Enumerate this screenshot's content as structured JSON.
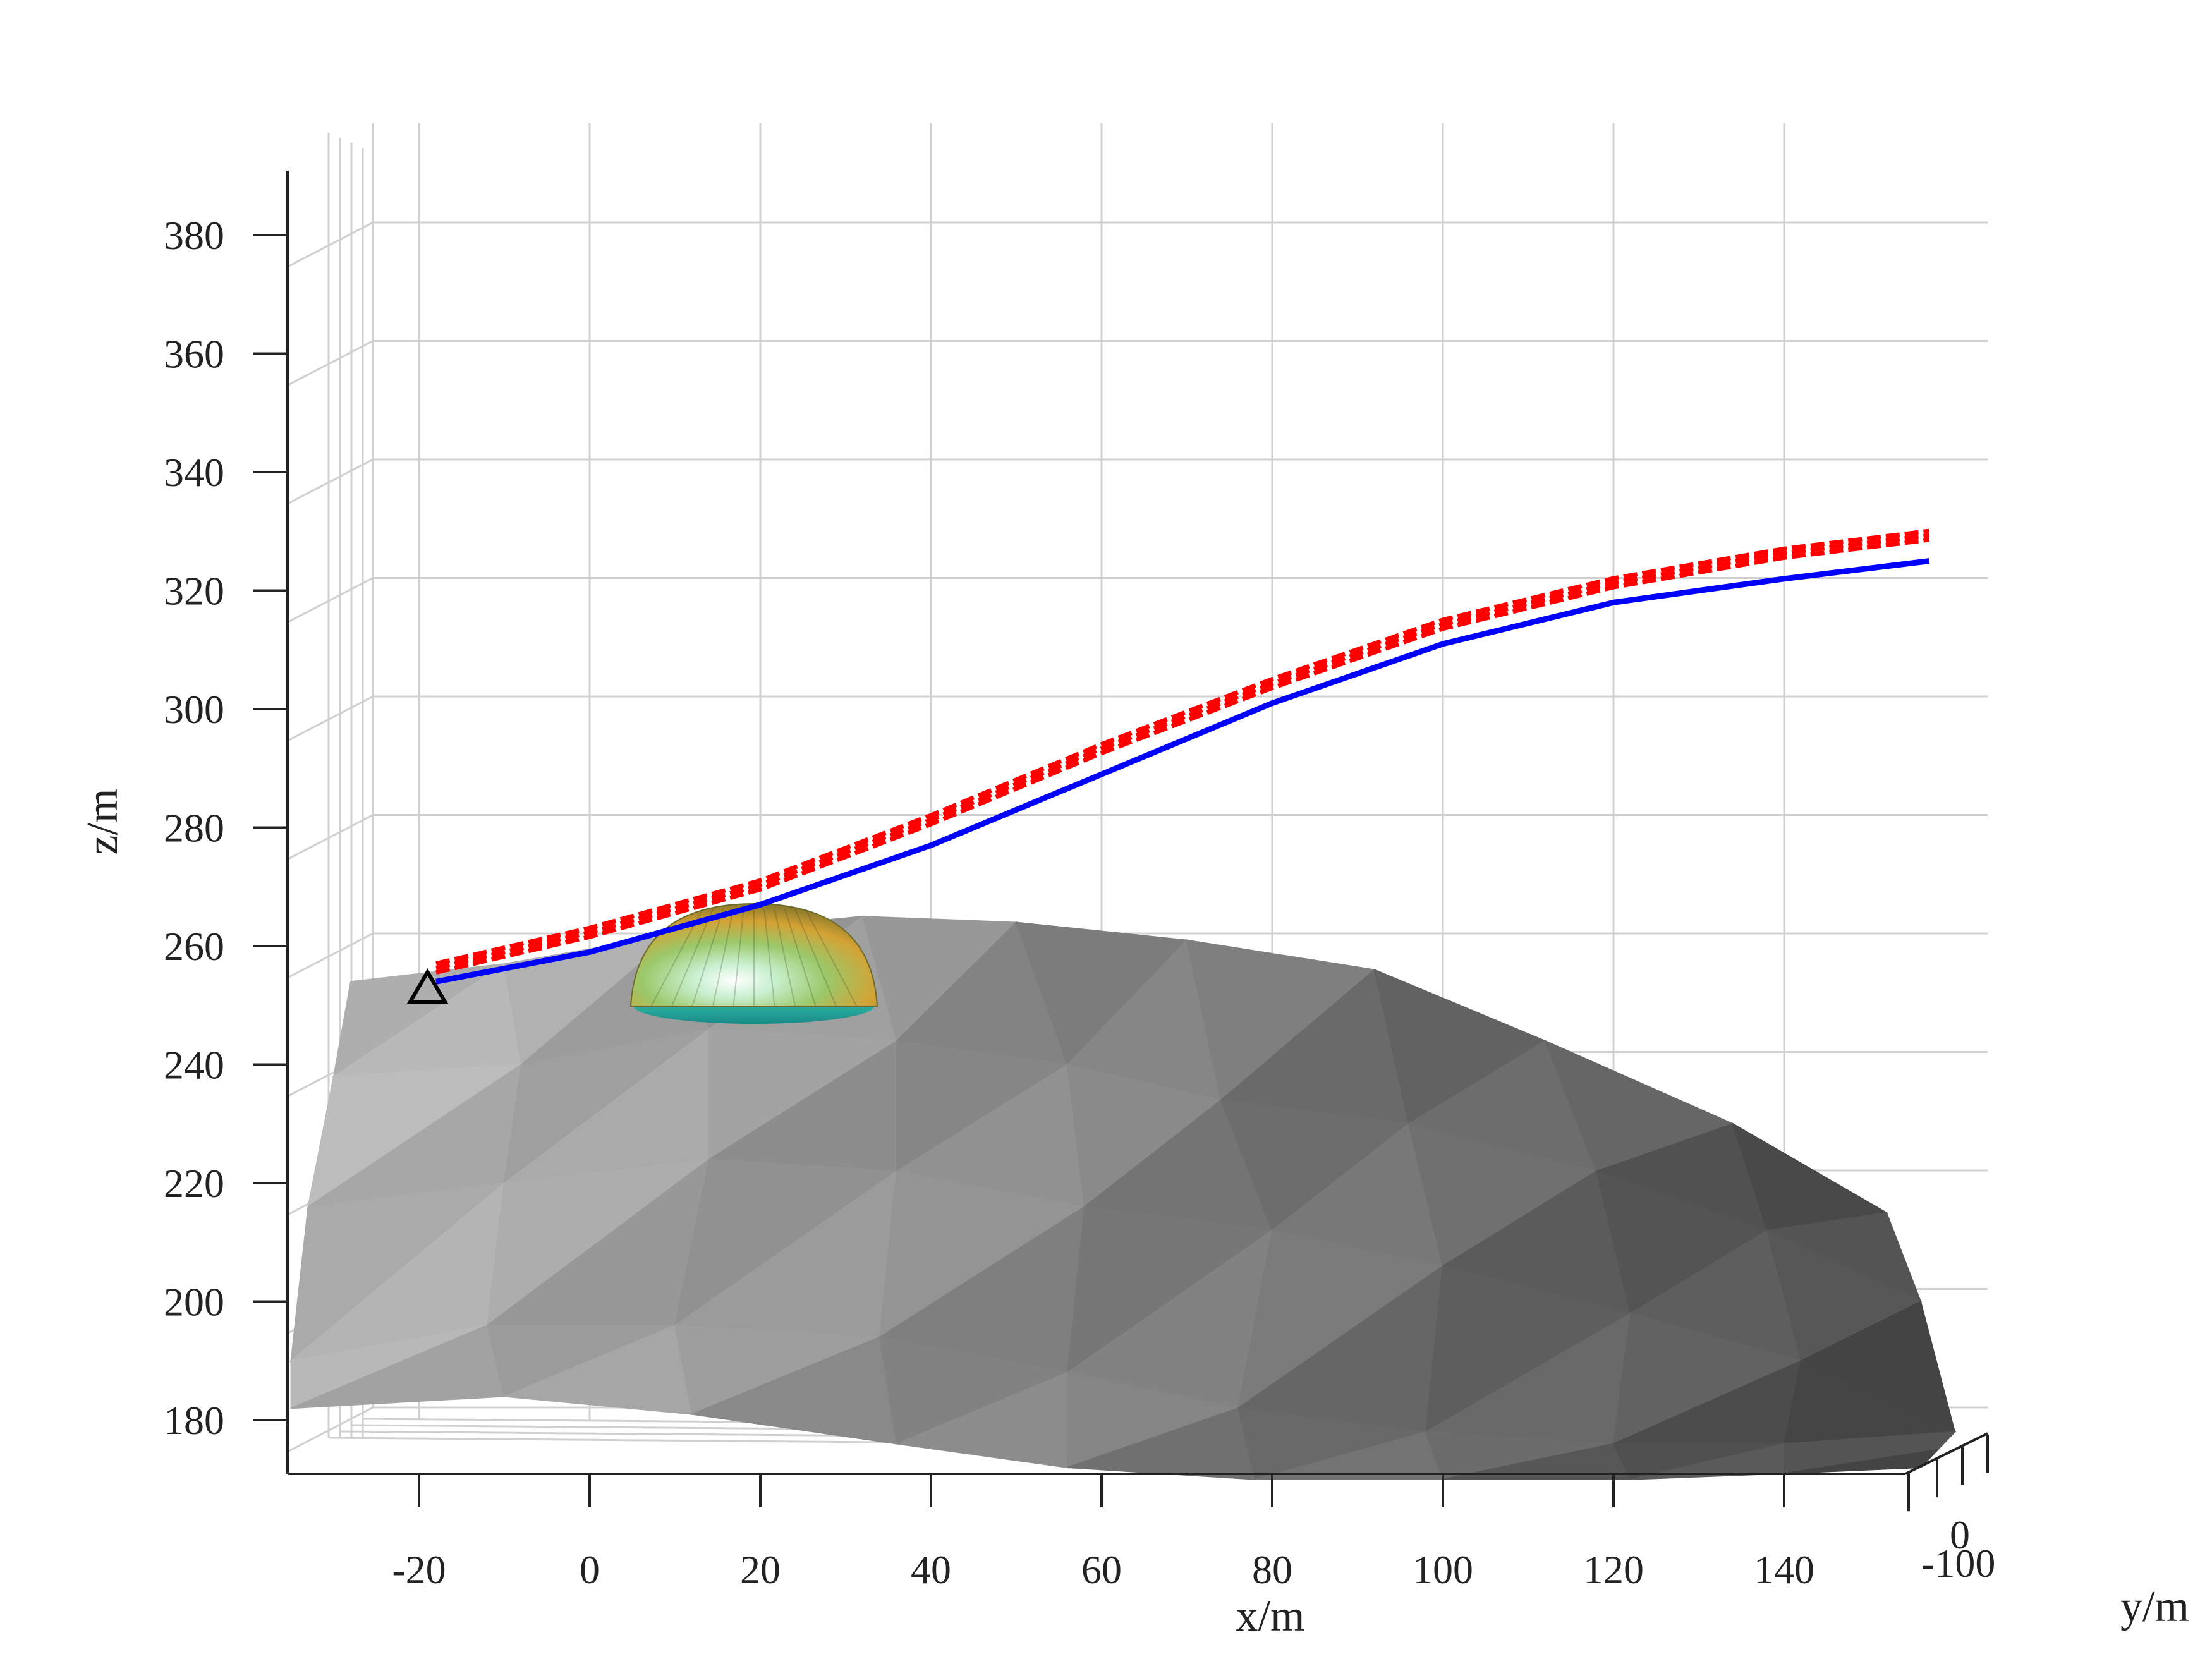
{
  "chart_data": {
    "type": "surface3d",
    "xlabel": "x/m",
    "ylabel": "y/m",
    "zlabel": "z/m",
    "x_ticks": [
      "-20",
      "0",
      "20",
      "40",
      "60",
      "80",
      "100",
      "120",
      "140"
    ],
    "y_ticks": [
      "0",
      "-100"
    ],
    "z_ticks": [
      "380",
      "360",
      "340",
      "320",
      "300",
      "280",
      "260",
      "240",
      "220",
      "200",
      "180"
    ],
    "xlim": [
      -35,
      155
    ],
    "zlim": [
      170,
      390
    ],
    "grid": true,
    "colors": {
      "planned_path": "#ff0000",
      "actual_path": "#0000ff",
      "terrain_light": "#b4b4b4",
      "terrain_dark": "#4a4a4a",
      "grid": "#d0d0d0",
      "axis": "#222222"
    },
    "series": [
      {
        "marker": "dashed-band",
        "color": "#ff0000",
        "x": [
          -18,
          0,
          20,
          40,
          60,
          80,
          100,
          120,
          140,
          157
        ],
        "z": [
          256,
          262,
          270,
          281,
          293,
          304,
          314,
          321,
          326,
          329
        ]
      },
      {
        "marker": "solid-line",
        "color": "#0000ff",
        "x": [
          -18,
          0,
          15,
          20,
          30,
          40,
          60,
          80,
          100,
          120,
          140,
          157
        ],
        "z": [
          254,
          259,
          265,
          267,
          272,
          277,
          289,
          301,
          311,
          318,
          322,
          325
        ]
      }
    ],
    "start_marker": {
      "shape": "triangle",
      "x": -19,
      "z": 252
    },
    "obstacle": {
      "shape": "hemisphere",
      "center_x": 20,
      "base_z": 252,
      "top_z": 268
    }
  }
}
